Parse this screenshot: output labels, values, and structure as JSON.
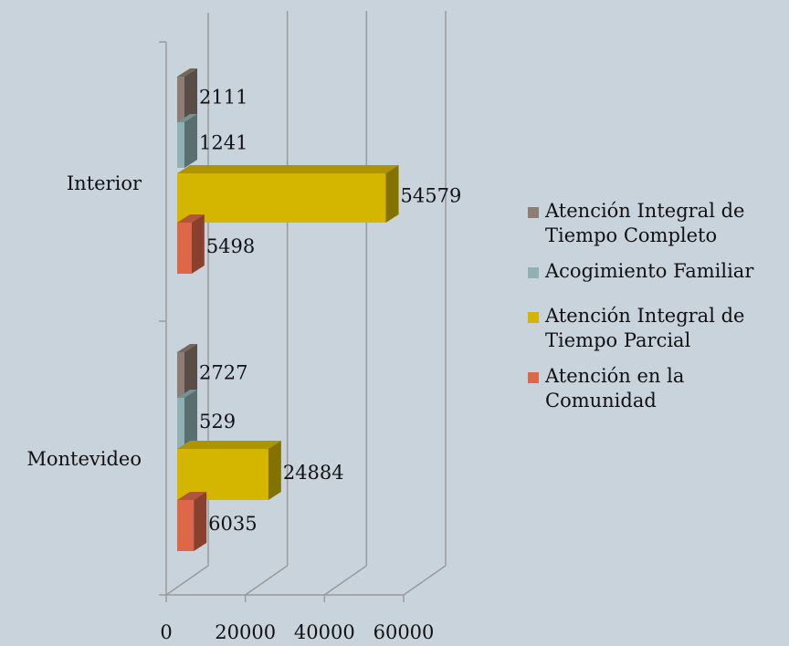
{
  "chart_data": {
    "type": "bar",
    "orientation": "horizontal",
    "three_d": true,
    "categories": [
      "Interior",
      "Montevideo"
    ],
    "series": [
      {
        "name": "Atención Integral de Tiempo Completo",
        "values": [
          2111,
          2727
        ],
        "color": "#8e7d72"
      },
      {
        "name": "Acogimiento Familiar",
        "values": [
          1241,
          529
        ],
        "color": "#8fb1b3"
      },
      {
        "name": "Atención Integral de Tiempo Parcial",
        "values": [
          54579,
          24884
        ],
        "color": "#d4b600"
      },
      {
        "name": "Atención en la Comunidad",
        "values": [
          5498,
          6035
        ],
        "color": "#dd6749"
      }
    ],
    "x_ticks": [
      "0",
      "20000",
      "40000",
      "60000"
    ],
    "xlim": [
      0,
      60000
    ],
    "grid": true,
    "legend_position": "right"
  }
}
